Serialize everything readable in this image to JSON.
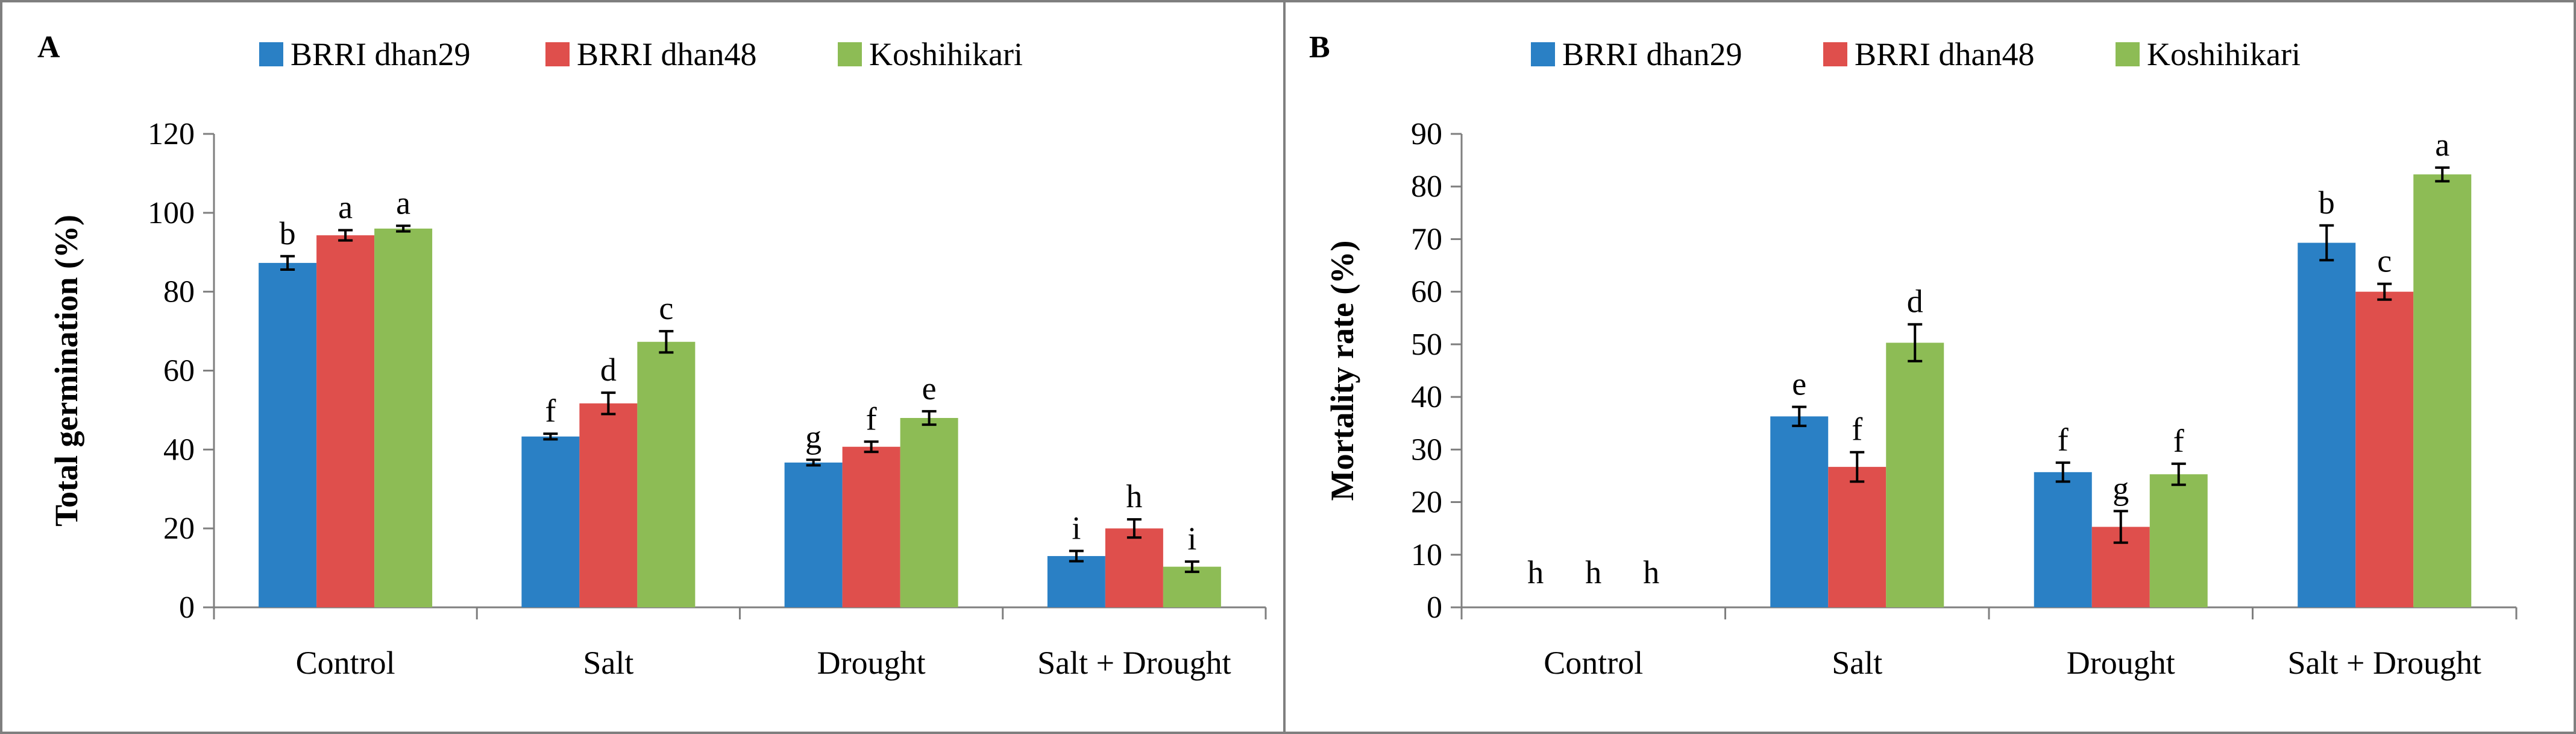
{
  "figure": {
    "panels": [
      "A",
      "B"
    ]
  },
  "colors": {
    "BRRI dhan29": "#2a80c5",
    "BRRI dhan48": "#df4f4c",
    "Koshihikari": "#8dbc55",
    "frame": "#7f7f7f",
    "axis": "#7f7f7f",
    "text": "#000000"
  },
  "chart_data": [
    {
      "panel_label": "A",
      "type": "bar",
      "title": "",
      "xlabel": "",
      "ylabel": "Total germination  (%)",
      "ylim": [
        0,
        120
      ],
      "yticks": [
        0,
        20,
        40,
        60,
        80,
        100,
        120
      ],
      "grid": false,
      "legend": "top",
      "categories": [
        "Control",
        "Salt",
        "Drought",
        "Salt  + Drought"
      ],
      "series": [
        {
          "name": "BRRI dhan29",
          "values": [
            87.3,
            43.3,
            36.7,
            13.0
          ],
          "errors": [
            1.7,
            0.7,
            0.7,
            1.3
          ],
          "labels": [
            "b",
            "f",
            "g",
            "i"
          ]
        },
        {
          "name": "BRRI dhan48",
          "values": [
            94.3,
            51.7,
            40.7,
            20.0
          ],
          "errors": [
            1.3,
            2.7,
            1.3,
            2.3
          ],
          "labels": [
            "a",
            "d",
            "f",
            "h"
          ]
        },
        {
          "name": "Koshihikari",
          "values": [
            96.0,
            67.3,
            48.0,
            10.3
          ],
          "errors": [
            0.7,
            2.7,
            1.7,
            1.3
          ],
          "labels": [
            "a",
            "c",
            "e",
            "i"
          ]
        }
      ]
    },
    {
      "panel_label": "B",
      "type": "bar",
      "title": "",
      "xlabel": "",
      "ylabel": "Mortality rate (%)",
      "ylim": [
        0,
        90
      ],
      "yticks": [
        0,
        10,
        20,
        30,
        40,
        50,
        60,
        70,
        80,
        90
      ],
      "grid": false,
      "legend": "top",
      "categories": [
        "Control",
        "Salt",
        "Drought",
        "Salt  + Drought"
      ],
      "series": [
        {
          "name": "BRRI dhan29",
          "values": [
            0,
            36.3,
            25.7,
            69.3
          ],
          "errors": [
            0,
            1.8,
            1.8,
            3.3
          ],
          "labels": [
            "h",
            "e",
            "f",
            "b"
          ]
        },
        {
          "name": "BRRI dhan48",
          "values": [
            0,
            26.7,
            15.3,
            60.0
          ],
          "errors": [
            0,
            2.8,
            3.0,
            1.5
          ],
          "labels": [
            "h",
            "f",
            "g",
            "c"
          ]
        },
        {
          "name": "Koshihikari",
          "values": [
            0,
            50.3,
            25.3,
            82.3
          ],
          "errors": [
            0,
            3.5,
            2.0,
            1.3
          ],
          "labels": [
            "h",
            "d",
            "f",
            "a"
          ]
        }
      ]
    }
  ]
}
